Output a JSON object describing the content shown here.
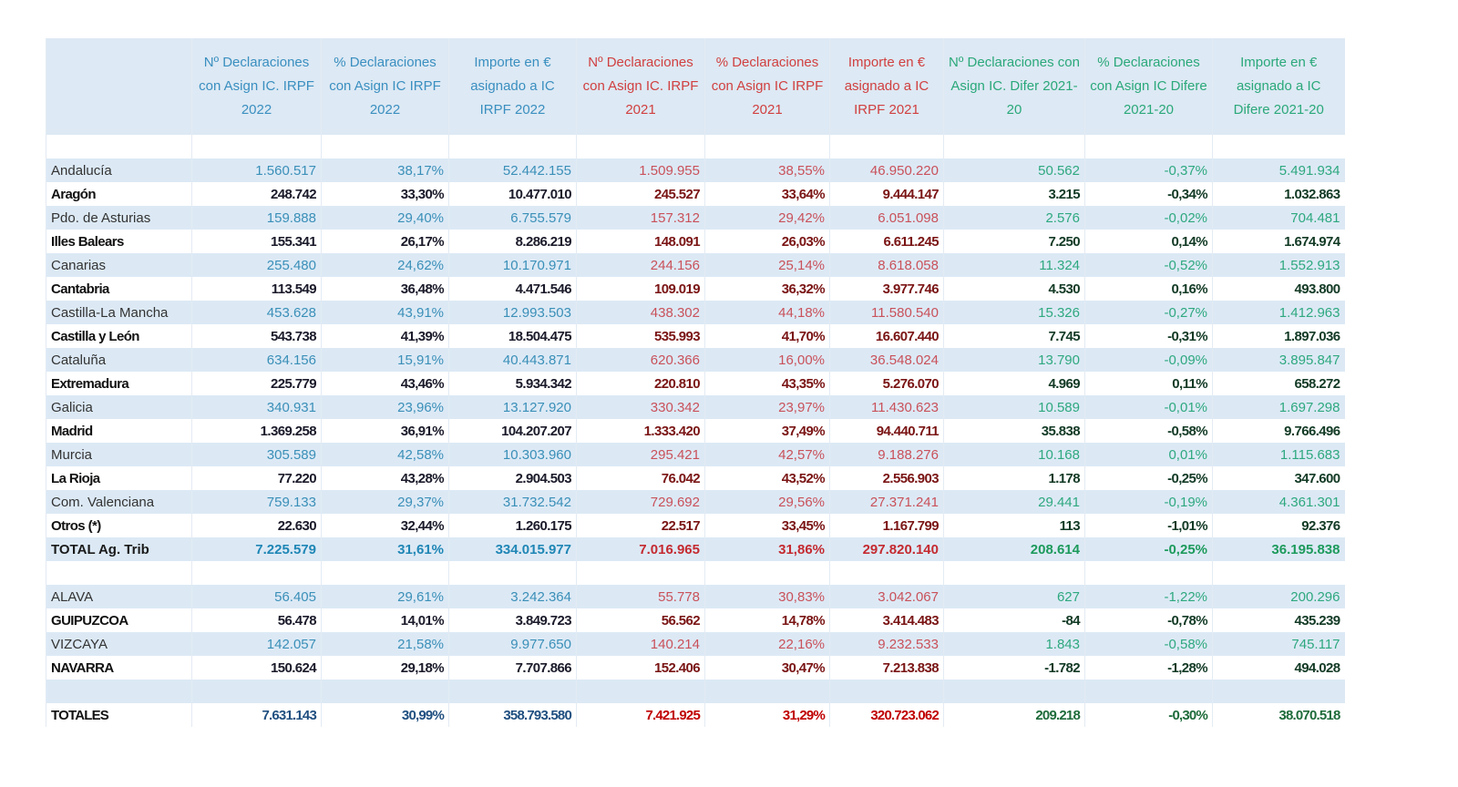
{
  "headers": [
    {
      "label": "",
      "group": "lbl"
    },
    {
      "label": "Nº Declaraciones con Asign IC. IRPF 2022",
      "group": "b"
    },
    {
      "label": "% Declaraciones con Asign IC IRPF 2022",
      "group": "b"
    },
    {
      "label": "Importe en € asignado a IC IRPF 2022",
      "group": "b"
    },
    {
      "label": "Nº Declaraciones con Asign IC. IRPF 2021",
      "group": "r"
    },
    {
      "label": "% Declaraciones con Asign IC IRPF 2021",
      "group": "r"
    },
    {
      "label": "Importe en € asignado a IC IRPF 2021",
      "group": "r"
    },
    {
      "label": "Nº Declaraciones con Asign IC. Difer 2021-20",
      "group": "g"
    },
    {
      "label": "% Declaraciones con Asign IC Difere 2021-20",
      "group": "g"
    },
    {
      "label": "Importe en € asignado a IC Difere 2021-20",
      "group": "g"
    }
  ],
  "rows": [
    {
      "style": "blank",
      "cells": []
    },
    {
      "style": "light",
      "cells": [
        "Andalucía",
        "1.560.517",
        "38,17%",
        "52.442.155",
        "1.509.955",
        "38,55%",
        "46.950.220",
        "50.562",
        "-0,37%",
        "5.491.934"
      ]
    },
    {
      "style": "bold",
      "cells": [
        "Aragón",
        "248.742",
        "33,30%",
        "10.477.010",
        "245.527",
        "33,64%",
        "9.444.147",
        "3.215",
        "-0,34%",
        "1.032.863"
      ]
    },
    {
      "style": "light",
      "cells": [
        "Pdo. de Asturias",
        "159.888",
        "29,40%",
        "6.755.579",
        "157.312",
        "29,42%",
        "6.051.098",
        "2.576",
        "-0,02%",
        "704.481"
      ]
    },
    {
      "style": "bold",
      "cells": [
        "Illes Balears",
        "155.341",
        "26,17%",
        "8.286.219",
        "148.091",
        "26,03%",
        "6.611.245",
        "7.250",
        "0,14%",
        "1.674.974"
      ]
    },
    {
      "style": "light",
      "cells": [
        "Canarias",
        "255.480",
        "24,62%",
        "10.170.971",
        "244.156",
        "25,14%",
        "8.618.058",
        "11.324",
        "-0,52%",
        "1.552.913"
      ]
    },
    {
      "style": "bold",
      "cells": [
        "Cantabria",
        "113.549",
        "36,48%",
        "4.471.546",
        "109.019",
        "36,32%",
        "3.977.746",
        "4.530",
        "0,16%",
        "493.800"
      ]
    },
    {
      "style": "light",
      "cells": [
        "Castilla-La Mancha",
        "453.628",
        "43,91%",
        "12.993.503",
        "438.302",
        "44,18%",
        "11.580.540",
        "15.326",
        "-0,27%",
        "1.412.963"
      ]
    },
    {
      "style": "bold",
      "cells": [
        "Castilla y León",
        "543.738",
        "41,39%",
        "18.504.475",
        "535.993",
        "41,70%",
        "16.607.440",
        "7.745",
        "-0,31%",
        "1.897.036"
      ]
    },
    {
      "style": "light",
      "cells": [
        "Cataluña",
        "634.156",
        "15,91%",
        "40.443.871",
        "620.366",
        "16,00%",
        "36.548.024",
        "13.790",
        "-0,09%",
        "3.895.847"
      ]
    },
    {
      "style": "bold",
      "cells": [
        "Extremadura",
        "225.779",
        "43,46%",
        "5.934.342",
        "220.810",
        "43,35%",
        "5.276.070",
        "4.969",
        "0,11%",
        "658.272"
      ]
    },
    {
      "style": "light",
      "cells": [
        "Galicia",
        "340.931",
        "23,96%",
        "13.127.920",
        "330.342",
        "23,97%",
        "11.430.623",
        "10.589",
        "-0,01%",
        "1.697.298"
      ]
    },
    {
      "style": "bold",
      "cells": [
        "Madrid",
        "1.369.258",
        "36,91%",
        "104.207.207",
        "1.333.420",
        "37,49%",
        "94.440.711",
        "35.838",
        "-0,58%",
        "9.766.496"
      ]
    },
    {
      "style": "light",
      "cells": [
        "Murcia",
        "305.589",
        "42,58%",
        "10.303.960",
        "295.421",
        "42,57%",
        "9.188.276",
        "10.168",
        "0,01%",
        "1.115.683"
      ]
    },
    {
      "style": "bold",
      "cells": [
        "La Rioja",
        "77.220",
        "43,28%",
        "2.904.503",
        "76.042",
        "43,52%",
        "2.556.903",
        "1.178",
        "-0,25%",
        "347.600"
      ]
    },
    {
      "style": "light",
      "cells": [
        "Com. Valenciana",
        "759.133",
        "29,37%",
        "31.732.542",
        "729.692",
        "29,56%",
        "27.371.241",
        "29.441",
        "-0,19%",
        "4.361.301"
      ]
    },
    {
      "style": "bold",
      "cells": [
        "Otros (*)",
        "22.630",
        "32,44%",
        "1.260.175",
        "22.517",
        "33,45%",
        "1.167.799",
        "113",
        "-1,01%",
        "92.376"
      ]
    },
    {
      "style": "total",
      "cells": [
        "TOTAL Ag. Trib",
        "7.225.579",
        "31,61%",
        "334.015.977",
        "7.016.965",
        "31,86%",
        "297.820.140",
        "208.614",
        "-0,25%",
        "36.195.838"
      ]
    },
    {
      "style": "blank",
      "cells": []
    },
    {
      "style": "light",
      "cells": [
        "ALAVA",
        "56.405",
        "29,61%",
        "3.242.364",
        "55.778",
        "30,83%",
        "3.042.067",
        "627",
        "-1,22%",
        "200.296"
      ]
    },
    {
      "style": "bold",
      "cells": [
        "GUIPUZCOA",
        "56.478",
        "14,01%",
        "3.849.723",
        "56.562",
        "14,78%",
        "3.414.483",
        "-84",
        "-0,78%",
        "435.239"
      ]
    },
    {
      "style": "light",
      "cells": [
        "VIZCAYA",
        "142.057",
        "21,58%",
        "9.977.650",
        "140.214",
        "22,16%",
        "9.232.533",
        "1.843",
        "-0,58%",
        "745.117"
      ]
    },
    {
      "style": "bold",
      "cells": [
        "NAVARRA",
        "150.624",
        "29,18%",
        "7.707.866",
        "152.406",
        "30,47%",
        "7.213.838",
        "-1.782",
        "-1,28%",
        "494.028"
      ]
    },
    {
      "style": "blank2",
      "cells": []
    },
    {
      "style": "grand",
      "cells": [
        "TOTALES",
        "7.631.143",
        "30,99%",
        "358.793.580",
        "7.421.925",
        "31,29%",
        "320.723.062",
        "209.218",
        "-0,30%",
        "38.070.518"
      ]
    }
  ]
}
